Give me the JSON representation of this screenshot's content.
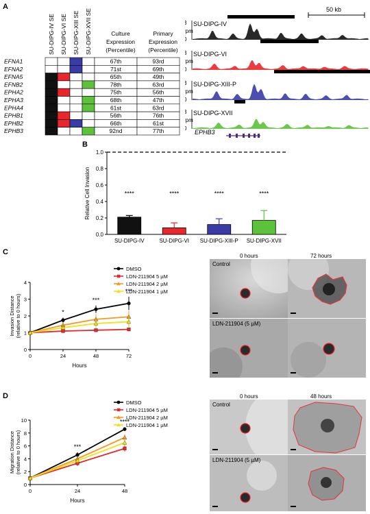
{
  "panels": {
    "a": "A",
    "b": "B",
    "c": "C",
    "d": "D"
  },
  "panel_a": {
    "se_headers": [
      "SU-DIPG-IV SE",
      "SU-DIPG-VI SE",
      "SU-DIPG-XIII SE",
      "SU-DIPG-XVII SE"
    ],
    "col_culture": [
      "Culture",
      "Expression",
      "(Percentile)"
    ],
    "col_primary": [
      "Primary",
      "Expression",
      "(Percentile)"
    ],
    "genes": [
      "EFNA1",
      "EFNA2",
      "EFNA5",
      "EFNB2",
      "EPHA2",
      "EPHA3",
      "EPHA4",
      "EPHB1",
      "EPHB2",
      "EPHB3"
    ],
    "culture": [
      "67th",
      "71st",
      "65th",
      "78th",
      "75th",
      "68th",
      "61st",
      "56th",
      "66th",
      "92nd"
    ],
    "primary": [
      "93rd",
      "69th",
      "49th",
      "63rd",
      "56th",
      "47th",
      "63rd",
      "76th",
      "61st",
      "77th"
    ],
    "matrix_colors": {
      "col1": "#111111",
      "col2": "#e8262b",
      "col3": "#3b3ba8",
      "col4": "#5cc23a"
    },
    "track_scale": "50 kb",
    "tracks": [
      {
        "name": "SU-DIPG-IV",
        "color": "#111111"
      },
      {
        "name": "SU-DIPG-VI",
        "color": "#e8262b"
      },
      {
        "name": "SU-DIPG-XIII-P",
        "color": "#3b3ba8"
      },
      {
        "name": "SU-DIPG-XVII",
        "color": "#5cc23a"
      }
    ],
    "track_ytop": "3",
    "track_ybottom": "0",
    "track_unit": "rpm",
    "gene_label": "EPHB3"
  },
  "chart_data": [
    {
      "type": "bar",
      "panel": "B",
      "categories": [
        "SU-DIPG-IV",
        "SU-DIPG-VI",
        "SU-DIPG-XIII-P",
        "SU-DIPG-XVII"
      ],
      "values": [
        0.21,
        0.08,
        0.12,
        0.17
      ],
      "errors": [
        0.02,
        0.06,
        0.07,
        0.12
      ],
      "significance": [
        "****",
        "****",
        "****",
        "****"
      ],
      "colors": [
        "#111111",
        "#e8262b",
        "#3b3ba8",
        "#5cc23a"
      ],
      "ylabel": "Relative Cell Invasion",
      "ylim": [
        0,
        1.0
      ],
      "yticks": [
        "0.0",
        "0.2",
        "0.4",
        "0.6",
        "0.8",
        "1.0"
      ],
      "reference_line": 1.0
    },
    {
      "type": "line",
      "panel": "C",
      "x": [
        0,
        24,
        48,
        72
      ],
      "xlabel": "Hours",
      "ylabel": "Invasion Distance (relative to 0 hours)",
      "ylim": [
        0,
        4
      ],
      "yticks": [
        "0",
        "1",
        "2",
        "3",
        "4"
      ],
      "xticks": [
        "0",
        "24",
        "48",
        "72"
      ],
      "annotations": [
        {
          "x": 24,
          "text": "*"
        },
        {
          "x": 48,
          "text": "***"
        },
        {
          "x": 72,
          "text": "***"
        }
      ],
      "series": [
        {
          "name": "DMSO",
          "color": "#000000",
          "values": [
            1.0,
            1.75,
            2.4,
            2.75
          ],
          "errors": [
            0,
            0.15,
            0.22,
            0.4
          ]
        },
        {
          "name": "LDN-211904 5 µM",
          "color": "#e8262b",
          "values": [
            1.0,
            1.1,
            1.15,
            1.2
          ],
          "errors": [
            0,
            0.08,
            0.08,
            0.1
          ]
        },
        {
          "name": "LDN-211904 2 µM",
          "color": "#f39a1f",
          "values": [
            1.0,
            1.45,
            1.8,
            1.95
          ],
          "errors": [
            0,
            0.15,
            0.3,
            0.35
          ]
        },
        {
          "name": "LDN-211904 1 µM",
          "color": "#f2e01a",
          "values": [
            1.0,
            1.3,
            1.55,
            1.65
          ],
          "errors": [
            0,
            0.12,
            0.25,
            0.3
          ]
        }
      ]
    },
    {
      "type": "line",
      "panel": "D",
      "x": [
        0,
        24,
        48
      ],
      "xlabel": "Hours",
      "ylabel": "Migration Distance (relative to 0 hours)",
      "ylim": [
        0,
        10
      ],
      "yticks": [
        "0",
        "2",
        "4",
        "6",
        "8",
        "10"
      ],
      "xticks": [
        "0",
        "24",
        "48"
      ],
      "annotations": [
        {
          "x": 24,
          "text": "***"
        },
        {
          "x": 48,
          "text": "****"
        }
      ],
      "series": [
        {
          "name": "DMSO",
          "color": "#000000",
          "values": [
            1.0,
            4.6,
            8.6
          ],
          "errors": [
            0,
            0.4,
            0.3
          ]
        },
        {
          "name": "LDN-211904 5 µM",
          "color": "#e8262b",
          "values": [
            1.0,
            3.3,
            5.6
          ],
          "errors": [
            0,
            0.4,
            0.5
          ]
        },
        {
          "name": "LDN-211904 2 µM",
          "color": "#f39a1f",
          "values": [
            1.0,
            4.0,
            7.3
          ],
          "errors": [
            0,
            0.4,
            0.5
          ]
        },
        {
          "name": "LDN-211904 1 µM",
          "color": "#f2e01a",
          "values": [
            1.0,
            3.7,
            6.5
          ],
          "errors": [
            0,
            0.4,
            0.5
          ]
        }
      ]
    }
  ],
  "panel_c_images": {
    "t0": "0 hours",
    "t1": "72 hours",
    "row1": "Control",
    "row2": "LDN-211904 (5 µM)"
  },
  "panel_d_images": {
    "t0": "0 hours",
    "t1": "48 hours",
    "row1": "Control",
    "row2": "LDN-211904 (5 µM)"
  }
}
